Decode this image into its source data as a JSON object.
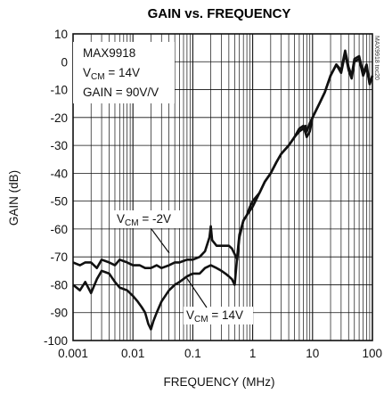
{
  "chart_data": {
    "type": "line",
    "title": "GAIN vs. FREQUENCY",
    "xlabel": "FREQUENCY (MHz)",
    "ylabel": "GAIN (dB)",
    "x_scale": "log",
    "xlim": [
      0.001,
      100
    ],
    "ylim": [
      -100,
      10
    ],
    "grid": true,
    "x_ticks": [
      "0.001",
      "0.01",
      "0.1",
      "1",
      "10",
      "100"
    ],
    "y_ticks": [
      "10",
      "0",
      "-10",
      "-20",
      "-30",
      "-40",
      "-50",
      "-60",
      "-70",
      "-80",
      "-90",
      "-100"
    ],
    "legend_box": [
      "MAX9918",
      "V",
      "CM",
      " = 14V",
      "GAIN = 90V/V"
    ],
    "annotations": [
      {
        "main": "V",
        "sub": "CM",
        "rest": " = -2V"
      },
      {
        "main": "V",
        "sub": "CM",
        "rest": " = 14V"
      }
    ],
    "side_code": "MAX9918 toc20",
    "series": [
      {
        "x": [
          0.001,
          0.0013,
          0.0016,
          0.002,
          0.0025,
          0.003,
          0.004,
          0.005,
          0.006,
          0.008,
          0.01,
          0.013,
          0.016,
          0.02,
          0.025,
          0.03,
          0.04,
          0.05,
          0.06,
          0.08,
          0.1,
          0.13,
          0.16,
          0.19,
          0.2,
          0.21,
          0.25,
          0.3,
          0.35,
          0.4,
          0.45,
          0.5,
          0.55,
          0.6,
          0.65,
          0.7,
          0.8,
          0.9,
          1,
          1.3,
          1.6,
          2,
          2.5,
          3,
          4,
          5,
          6,
          7,
          7.6,
          8,
          9,
          10,
          13,
          16,
          20,
          25,
          30,
          35,
          40,
          45,
          50,
          60,
          70,
          80,
          90,
          100
        ],
        "values": [
          -72,
          -73,
          -72,
          -72,
          -74,
          -71,
          -72,
          -73,
          -71,
          -72,
          -73,
          -73,
          -74,
          -74,
          -73,
          -74,
          -73,
          -72,
          -72,
          -71,
          -71,
          -70,
          -68,
          -63,
          -59,
          -64,
          -66,
          -66,
          -66,
          -66,
          -67,
          -69,
          -71,
          -63,
          -60,
          -57,
          -55,
          -52,
          -50,
          -47,
          -43,
          -40,
          -36,
          -33,
          -30,
          -27,
          -25,
          -24,
          -23,
          -25,
          -22,
          -20,
          -15,
          -11,
          -5,
          -1,
          -3,
          4,
          -2,
          -5,
          1,
          2,
          -4,
          -1,
          -8,
          -5
        ]
      },
      {
        "x": [
          0.001,
          0.0013,
          0.0016,
          0.002,
          0.0025,
          0.003,
          0.004,
          0.005,
          0.006,
          0.008,
          0.01,
          0.012,
          0.014,
          0.016,
          0.018,
          0.02,
          0.022,
          0.025,
          0.03,
          0.04,
          0.05,
          0.06,
          0.08,
          0.1,
          0.13,
          0.16,
          0.2,
          0.25,
          0.3,
          0.35,
          0.4,
          0.45,
          0.5,
          0.55,
          0.6,
          0.7,
          0.8,
          1,
          1.3,
          1.6,
          2,
          2.5,
          3,
          4,
          5,
          6,
          7,
          8,
          9,
          10,
          13,
          16,
          20,
          25,
          30,
          35,
          40,
          45,
          50,
          60,
          70,
          80,
          90,
          100
        ],
        "values": [
          -80,
          -82,
          -79,
          -83,
          -78,
          -75,
          -76,
          -79,
          -81,
          -82,
          -84,
          -86,
          -88,
          -90,
          -94,
          -96,
          -93,
          -90,
          -86,
          -82,
          -80,
          -79,
          -77,
          -76,
          -76,
          -74,
          -73,
          -74,
          -75,
          -76,
          -77,
          -78,
          -80,
          -70,
          -62,
          -57,
          -55,
          -52,
          -47,
          -43,
          -40,
          -36,
          -33,
          -30,
          -27,
          -24,
          -23,
          -27,
          -25,
          -20,
          -15,
          -11,
          -5,
          -1,
          -4,
          3,
          -3,
          -6,
          0,
          1,
          -5,
          -2,
          -8,
          -5
        ]
      }
    ]
  }
}
